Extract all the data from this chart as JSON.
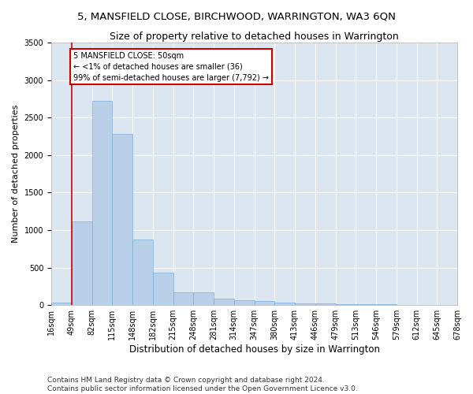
{
  "title": "5, MANSFIELD CLOSE, BIRCHWOOD, WARRINGTON, WA3 6QN",
  "subtitle": "Size of property relative to detached houses in Warrington",
  "xlabel": "Distribution of detached houses by size in Warrington",
  "ylabel": "Number of detached properties",
  "bar_values": [
    36,
    1120,
    2720,
    2280,
    870,
    430,
    175,
    175,
    90,
    60,
    55,
    35,
    28,
    20,
    15,
    10,
    8,
    5,
    3,
    2
  ],
  "bar_labels": [
    "16sqm",
    "49sqm",
    "82sqm",
    "115sqm",
    "148sqm",
    "182sqm",
    "215sqm",
    "248sqm",
    "281sqm",
    "314sqm",
    "347sqm",
    "380sqm",
    "413sqm",
    "446sqm",
    "479sqm",
    "513sqm",
    "546sqm",
    "579sqm",
    "612sqm",
    "645sqm",
    "678sqm"
  ],
  "bar_color": "#bad0e8",
  "bar_edge_color": "#7aadd4",
  "annotation_box_text": "5 MANSFIELD CLOSE: 50sqm\n← <1% of detached houses are smaller (36)\n99% of semi-detached houses are larger (7,792) →",
  "annotation_box_color": "#cc0000",
  "vline_color": "#cc0000",
  "vline_x": 1.0,
  "ylim": [
    0,
    3500
  ],
  "yticks": [
    0,
    500,
    1000,
    1500,
    2000,
    2500,
    3000,
    3500
  ],
  "background_color": "#dce6f0",
  "grid_color": "#ffffff",
  "title_fontsize": 9.5,
  "subtitle_fontsize": 9,
  "xlabel_fontsize": 8.5,
  "ylabel_fontsize": 8,
  "tick_fontsize": 7,
  "footer_text": "Contains HM Land Registry data © Crown copyright and database right 2024.\nContains public sector information licensed under the Open Government Licence v3.0.",
  "footer_fontsize": 6.5
}
